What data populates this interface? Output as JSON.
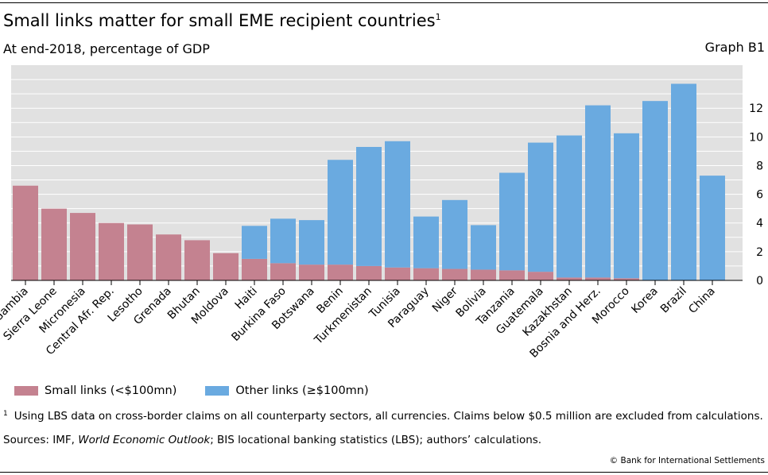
{
  "header": {
    "title": "Small links matter for small EME recipient countries",
    "title_note": "1",
    "subtitle": "At end-2018, percentage of GDP",
    "graph_id": "Graph B1"
  },
  "colors": {
    "small": "#c48290",
    "other": "#6aaae0",
    "plot_bg": "#e1e1e1",
    "grid": "#ffffff"
  },
  "chart_data": {
    "type": "bar",
    "stacked": true,
    "title": "Small links matter for small EME recipient countries",
    "ylabel": "",
    "ylim": [
      0,
      14
    ],
    "yticks": [
      0,
      2,
      4,
      6,
      8,
      10,
      12
    ],
    "y_axis_side": "right",
    "grid": true,
    "legend_position": "bottom-left",
    "categories": [
      "Gambia",
      "Sierra Leone",
      "Micronesia",
      "Central Afr. Rep.",
      "Lesotho",
      "Grenada",
      "Bhutan",
      "Moldova",
      "Haiti",
      "Burkina Faso",
      "Botswana",
      "Benin",
      "Turkmenistan",
      "Tunisia",
      "Paraguay",
      "Niger",
      "Bolivia",
      "Tanzania",
      "Guatemala",
      "Kazakhstan",
      "Bosnia and Herz.",
      "Morocco",
      "Korea",
      "Brazil",
      "China"
    ],
    "series": [
      {
        "name": "Small links (<$100mn)",
        "values": [
          6.6,
          5.0,
          4.7,
          4.0,
          3.9,
          3.2,
          2.8,
          1.9,
          1.5,
          1.2,
          1.1,
          1.1,
          1.0,
          0.9,
          0.85,
          0.8,
          0.75,
          0.7,
          0.6,
          0.2,
          0.2,
          0.15,
          0,
          0,
          0
        ]
      },
      {
        "name": "Other links (≥$100mn)",
        "values": [
          0,
          0,
          0,
          0,
          0,
          0,
          0,
          0,
          2.3,
          3.1,
          3.1,
          7.3,
          8.3,
          8.8,
          3.6,
          4.8,
          3.1,
          6.8,
          9.0,
          9.9,
          12.0,
          10.1,
          12.5,
          13.7,
          7.3
        ]
      }
    ]
  },
  "legend": {
    "small_label": "Small links (<$100mn)",
    "other_label": "Other links (≥$100mn)"
  },
  "footnote": {
    "marker": "1",
    "text": "Using LBS data on cross-border claims on all counterparty sectors, all currencies. Claims below $0.5 million are excluded from calculations."
  },
  "sources": {
    "prefix": "Sources: IMF, ",
    "weo": "World Economic Outlook",
    "rest": "; BIS locational banking statistics (LBS); authors’ calculations."
  },
  "copyright": "© Bank for International Settlements"
}
